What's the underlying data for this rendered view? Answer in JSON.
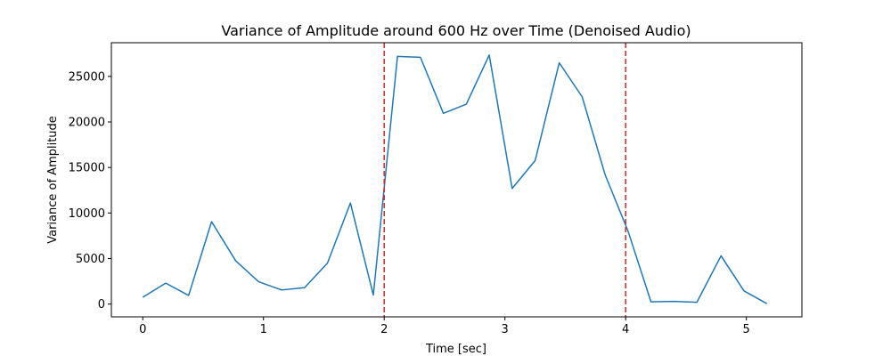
{
  "chart_data": {
    "type": "line",
    "title": "Variance of Amplitude around 600 Hz over Time (Denoised Audio)",
    "xlabel": "Time [sec]",
    "ylabel": "Variance of Amplitude",
    "xlim": [
      -0.26,
      5.46
    ],
    "ylim": [
      -1400,
      28700
    ],
    "xticks": [
      0,
      1,
      2,
      3,
      4,
      5
    ],
    "yticks": [
      0,
      5000,
      10000,
      15000,
      20000,
      25000
    ],
    "grid": false,
    "series": [
      {
        "color": "#1f77b4",
        "x": [
          0.0,
          0.19,
          0.38,
          0.57,
          0.77,
          0.96,
          1.15,
          1.34,
          1.53,
          1.72,
          1.91,
          2.11,
          2.3,
          2.49,
          2.68,
          2.87,
          3.06,
          3.25,
          3.45,
          3.64,
          3.83,
          4.02,
          4.21,
          4.4,
          4.59,
          4.79,
          4.98,
          5.17
        ],
        "y": [
          750,
          2300,
          950,
          9050,
          4750,
          2450,
          1550,
          1800,
          4500,
          11100,
          1000,
          27200,
          27100,
          20950,
          21950,
          27350,
          12700,
          15750,
          26500,
          22750,
          14200,
          8000,
          250,
          300,
          200,
          5300,
          1450,
          50
        ]
      }
    ],
    "vlines": [
      {
        "x": 2.0,
        "color": "#d62728",
        "style": "dashed"
      },
      {
        "x": 4.0,
        "color": "#d62728",
        "style": "dashed"
      }
    ]
  }
}
